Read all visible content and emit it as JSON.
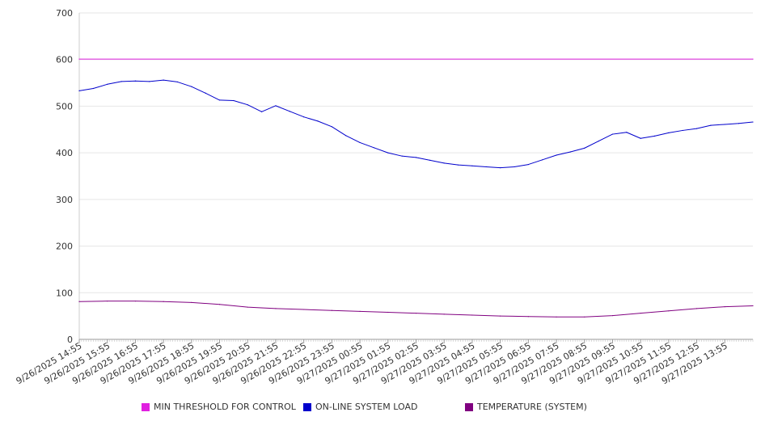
{
  "chart_data": {
    "type": "line",
    "title": "",
    "xlabel": "",
    "ylabel": "",
    "ylim": [
      0,
      700
    ],
    "y_ticks": [
      0,
      100,
      200,
      300,
      400,
      500,
      600,
      700
    ],
    "grid": true,
    "legend_position": "bottom",
    "x_range": [
      "9/26/2025 14:55",
      "9/27/2025 14:55"
    ],
    "x_tick_labels": [
      "9/26/2025 14:55",
      "9/26/2025 15:55",
      "9/26/2025 16:55",
      "9/26/2025 17:55",
      "9/26/2025 18:55",
      "9/26/2025 19:55",
      "9/26/2025 20:55",
      "9/26/2025 21:55",
      "9/26/2025 22:55",
      "9/26/2025 23:55",
      "9/27/2025 00:55",
      "9/27/2025 01:55",
      "9/27/2025 02:55",
      "9/27/2025 03:55",
      "9/27/2025 04:55",
      "9/27/2025 05:55",
      "9/27/2025 06:55",
      "9/27/2025 07:55",
      "9/27/2025 08:55",
      "9/27/2025 09:55",
      "9/27/2025 10:55",
      "9/27/2025 11:55",
      "9/27/2025 12:55",
      "9/27/2025 13:55"
    ],
    "series": [
      {
        "name": "MIN THRESHOLD FOR CONTROL",
        "color": "#e020e0",
        "x": [
          "9/26/2025 14:55",
          "9/27/2025 14:55"
        ],
        "values": [
          601,
          601
        ]
      },
      {
        "name": "ON-LINE SYSTEM LOAD",
        "color": "#0000cc",
        "x": [
          "9/26/2025 14:55",
          "9/26/2025 15:25",
          "9/26/2025 15:55",
          "9/26/2025 16:25",
          "9/26/2025 16:55",
          "9/26/2025 17:25",
          "9/26/2025 17:55",
          "9/26/2025 18:25",
          "9/26/2025 18:55",
          "9/26/2025 19:25",
          "9/26/2025 19:55",
          "9/26/2025 20:25",
          "9/26/2025 20:55",
          "9/26/2025 21:25",
          "9/26/2025 21:55",
          "9/26/2025 22:25",
          "9/26/2025 22:55",
          "9/26/2025 23:25",
          "9/26/2025 23:55",
          "9/27/2025 00:25",
          "9/27/2025 00:55",
          "9/27/2025 01:25",
          "9/27/2025 01:55",
          "9/27/2025 02:25",
          "9/27/2025 02:55",
          "9/27/2025 03:25",
          "9/27/2025 03:55",
          "9/27/2025 04:25",
          "9/27/2025 04:55",
          "9/27/2025 05:25",
          "9/27/2025 05:55",
          "9/27/2025 06:25",
          "9/27/2025 06:55",
          "9/27/2025 07:25",
          "9/27/2025 07:55",
          "9/27/2025 08:25",
          "9/27/2025 08:55",
          "9/27/2025 09:25",
          "9/27/2025 09:55",
          "9/27/2025 10:25",
          "9/27/2025 10:55",
          "9/27/2025 11:25",
          "9/27/2025 11:55",
          "9/27/2025 12:25",
          "9/27/2025 12:55",
          "9/27/2025 13:25",
          "9/27/2025 13:55",
          "9/27/2025 14:25",
          "9/27/2025 14:55"
        ],
        "values": [
          533,
          538,
          547,
          553,
          554,
          553,
          556,
          552,
          542,
          528,
          513,
          512,
          503,
          488,
          501,
          489,
          477,
          468,
          456,
          437,
          422,
          411,
          400,
          393,
          390,
          384,
          378,
          374,
          372,
          370,
          368,
          370,
          375,
          385,
          395,
          402,
          410,
          425,
          440,
          444,
          431,
          436,
          443,
          448,
          452,
          459,
          461,
          463,
          466
        ]
      },
      {
        "name": "TEMPERATURE (SYSTEM)",
        "color": "#800080",
        "x": [
          "9/26/2025 14:55",
          "9/26/2025 15:55",
          "9/26/2025 16:55",
          "9/26/2025 17:55",
          "9/26/2025 18:55",
          "9/26/2025 19:55",
          "9/26/2025 20:55",
          "9/26/2025 21:55",
          "9/26/2025 22:55",
          "9/26/2025 23:55",
          "9/27/2025 00:55",
          "9/27/2025 01:55",
          "9/27/2025 02:55",
          "9/27/2025 03:55",
          "9/27/2025 04:55",
          "9/27/2025 05:55",
          "9/27/2025 06:55",
          "9/27/2025 07:55",
          "9/27/2025 08:55",
          "9/27/2025 09:55",
          "9/27/2025 10:55",
          "9/27/2025 11:55",
          "9/27/2025 12:55",
          "9/27/2025 13:55",
          "9/27/2025 14:55"
        ],
        "values": [
          81,
          82,
          82,
          81,
          79,
          75,
          69,
          66,
          64,
          62,
          60,
          58,
          56,
          54,
          52,
          50,
          49,
          48,
          48,
          51,
          56,
          61,
          66,
          70,
          72
        ]
      }
    ]
  }
}
